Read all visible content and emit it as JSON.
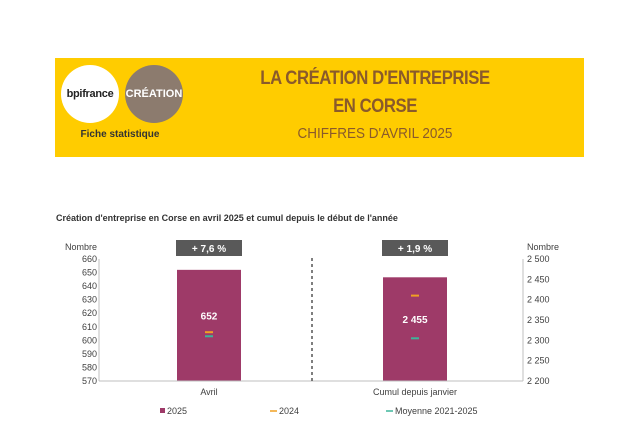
{
  "header": {
    "logo_left": "bpifrance",
    "logo_right": "CRÉATION",
    "fiche": "Fiche statistique",
    "title_line1": "LA CRÉATION D'ENTREPRISE",
    "title_line2": "EN CORSE",
    "subtitle": "CHIFFRES D'AVRIL 2025"
  },
  "colors": {
    "banner": "#FFCC00",
    "bar_2025": "#9E3A68",
    "marker_2024": "#F0A023",
    "marker_avg": "#3DB59A",
    "badge": "#595959"
  },
  "chart_data": {
    "type": "bar",
    "title": "Création d'entreprise en Corse en avril 2025 et cumul depuis le début de l'année",
    "grid": false,
    "legend_position": "bottom",
    "panels": [
      {
        "category": "Avril",
        "axis": "left",
        "ylabel": "Nombre",
        "ylim": [
          570,
          660
        ],
        "yticks": [
          570,
          580,
          590,
          600,
          610,
          620,
          630,
          640,
          650,
          660
        ],
        "ytick_labels": [
          "570",
          "580",
          "590",
          "600",
          "610",
          "620",
          "630",
          "640",
          "650",
          "660"
        ],
        "value_2025": 652,
        "value_label": "652",
        "value_2024": 606,
        "value_avg": 603,
        "change": "+ 7,6 %"
      },
      {
        "category": "Cumul depuis janvier",
        "axis": "right",
        "ylabel": "Nombre",
        "ylim": [
          2200,
          2500
        ],
        "yticks": [
          2200,
          2250,
          2300,
          2350,
          2400,
          2450,
          2500
        ],
        "ytick_labels": [
          "2 200",
          "2 250",
          "2 300",
          "2 350",
          "2 400",
          "2 450",
          "2 500"
        ],
        "value_2025": 2455,
        "value_label": "2 455",
        "value_2024": 2410,
        "value_avg": 2305,
        "change": "+ 1,9 %"
      }
    ],
    "legend": [
      "2025",
      "2024",
      "Moyenne 2021-2025"
    ]
  }
}
